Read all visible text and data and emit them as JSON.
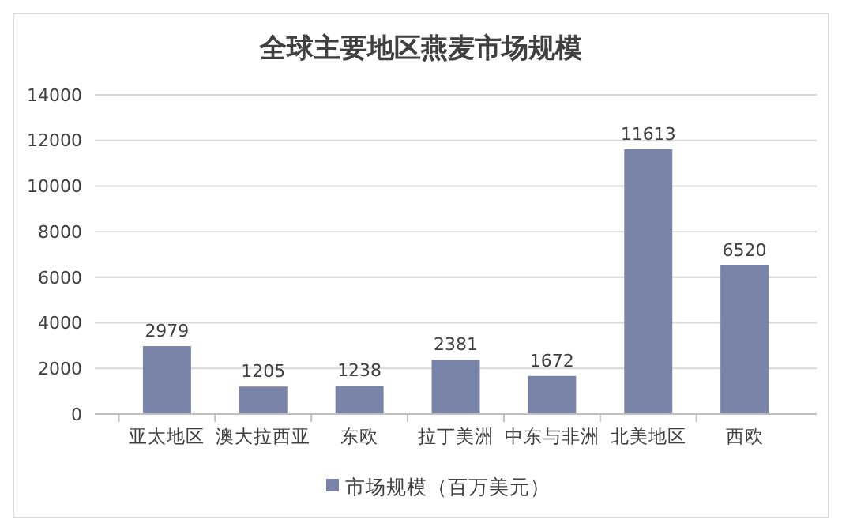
{
  "chart_data": {
    "type": "bar",
    "title": "全球主要地区燕麦市场规模",
    "categories": [
      "亚太地区",
      "澳大拉西亚",
      "东欧",
      "拉丁美洲",
      "中东与非洲",
      "北美地区",
      "西欧"
    ],
    "series": [
      {
        "name": "市场规模（百万美元）",
        "color": "#7a84a8",
        "values": [
          2979,
          1205,
          1238,
          2381,
          1672,
          11613,
          6520
        ]
      }
    ],
    "ylim": [
      0,
      14000
    ],
    "yticks": [
      0,
      2000,
      4000,
      6000,
      8000,
      10000,
      12000,
      14000
    ],
    "grid": "y",
    "legend": "bottom",
    "data_labels": true
  }
}
